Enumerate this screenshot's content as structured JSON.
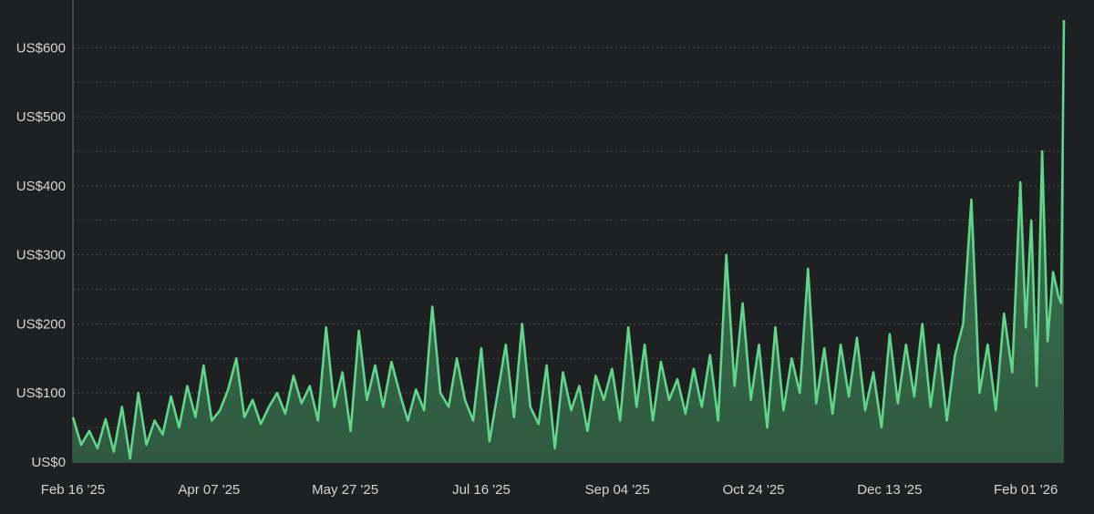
{
  "colors": {
    "background": "#1f2021",
    "line": "#5fd68a",
    "area_top": "#3f7d57",
    "area_bottom": "#2f5a40",
    "grid": "#4a4b4c",
    "axis": "#6a6b6c",
    "text": "#d4d4d4"
  },
  "chart_data": {
    "type": "area",
    "title": "",
    "xlabel": "",
    "ylabel": "",
    "grid": true,
    "y_ticks": [
      {
        "value": 0,
        "label": "US$0"
      },
      {
        "value": 100,
        "label": "US$100"
      },
      {
        "value": 200,
        "label": "US$200"
      },
      {
        "value": 300,
        "label": "US$300"
      },
      {
        "value": 400,
        "label": "US$400"
      },
      {
        "value": 500,
        "label": "US$500"
      },
      {
        "value": 600,
        "label": "US$600"
      }
    ],
    "ylim": [
      0,
      640
    ],
    "x_range": [
      "2025-02-16",
      "2026-02-15"
    ],
    "x_ticks": [
      {
        "date": "2025-02-16",
        "label": "Feb 16 '25"
      },
      {
        "date": "2025-04-07",
        "label": "Apr 07 '25"
      },
      {
        "date": "2025-05-27",
        "label": "May 27 '25"
      },
      {
        "date": "2025-07-16",
        "label": "Jul 16 '25"
      },
      {
        "date": "2025-09-04",
        "label": "Sep 04 '25"
      },
      {
        "date": "2025-10-24",
        "label": "Oct 24 '25"
      },
      {
        "date": "2025-12-13",
        "label": "Dec 13 '25"
      },
      {
        "date": "2026-02-01",
        "label": "Feb 01 '26"
      }
    ],
    "series": [
      {
        "points": [
          [
            "2025-02-16",
            65
          ],
          [
            "2025-02-19",
            25
          ],
          [
            "2025-02-22",
            45
          ],
          [
            "2025-02-25",
            20
          ],
          [
            "2025-02-28",
            62
          ],
          [
            "2025-03-03",
            15
          ],
          [
            "2025-03-06",
            80
          ],
          [
            "2025-03-09",
            5
          ],
          [
            "2025-03-12",
            100
          ],
          [
            "2025-03-15",
            25
          ],
          [
            "2025-03-18",
            60
          ],
          [
            "2025-03-21",
            40
          ],
          [
            "2025-03-24",
            95
          ],
          [
            "2025-03-27",
            50
          ],
          [
            "2025-03-30",
            110
          ],
          [
            "2025-04-02",
            65
          ],
          [
            "2025-04-05",
            140
          ],
          [
            "2025-04-08",
            60
          ],
          [
            "2025-04-11",
            75
          ],
          [
            "2025-04-14",
            105
          ],
          [
            "2025-04-17",
            150
          ],
          [
            "2025-04-20",
            65
          ],
          [
            "2025-04-23",
            90
          ],
          [
            "2025-04-26",
            55
          ],
          [
            "2025-04-29",
            80
          ],
          [
            "2025-05-02",
            100
          ],
          [
            "2025-05-05",
            70
          ],
          [
            "2025-05-08",
            125
          ],
          [
            "2025-05-11",
            85
          ],
          [
            "2025-05-14",
            110
          ],
          [
            "2025-05-17",
            60
          ],
          [
            "2025-05-20",
            195
          ],
          [
            "2025-05-23",
            80
          ],
          [
            "2025-05-26",
            130
          ],
          [
            "2025-05-29",
            45
          ],
          [
            "2025-06-01",
            190
          ],
          [
            "2025-06-04",
            90
          ],
          [
            "2025-06-07",
            140
          ],
          [
            "2025-06-10",
            80
          ],
          [
            "2025-06-13",
            145
          ],
          [
            "2025-06-16",
            100
          ],
          [
            "2025-06-19",
            60
          ],
          [
            "2025-06-22",
            105
          ],
          [
            "2025-06-25",
            75
          ],
          [
            "2025-06-28",
            225
          ],
          [
            "2025-07-01",
            100
          ],
          [
            "2025-07-04",
            80
          ],
          [
            "2025-07-07",
            150
          ],
          [
            "2025-07-10",
            90
          ],
          [
            "2025-07-13",
            60
          ],
          [
            "2025-07-16",
            165
          ],
          [
            "2025-07-19",
            30
          ],
          [
            "2025-07-22",
            100
          ],
          [
            "2025-07-25",
            170
          ],
          [
            "2025-07-28",
            65
          ],
          [
            "2025-07-31",
            200
          ],
          [
            "2025-08-03",
            80
          ],
          [
            "2025-08-06",
            55
          ],
          [
            "2025-08-09",
            140
          ],
          [
            "2025-08-12",
            20
          ],
          [
            "2025-08-15",
            130
          ],
          [
            "2025-08-18",
            75
          ],
          [
            "2025-08-21",
            110
          ],
          [
            "2025-08-24",
            45
          ],
          [
            "2025-08-27",
            125
          ],
          [
            "2025-08-30",
            90
          ],
          [
            "2025-09-02",
            135
          ],
          [
            "2025-09-05",
            60
          ],
          [
            "2025-09-08",
            195
          ],
          [
            "2025-09-11",
            80
          ],
          [
            "2025-09-14",
            170
          ],
          [
            "2025-09-17",
            60
          ],
          [
            "2025-09-20",
            145
          ],
          [
            "2025-09-23",
            90
          ],
          [
            "2025-09-26",
            120
          ],
          [
            "2025-09-29",
            70
          ],
          [
            "2025-10-02",
            135
          ],
          [
            "2025-10-05",
            80
          ],
          [
            "2025-10-08",
            155
          ],
          [
            "2025-10-11",
            60
          ],
          [
            "2025-10-14",
            300
          ],
          [
            "2025-10-17",
            110
          ],
          [
            "2025-10-20",
            230
          ],
          [
            "2025-10-23",
            90
          ],
          [
            "2025-10-26",
            170
          ],
          [
            "2025-10-29",
            50
          ],
          [
            "2025-11-01",
            195
          ],
          [
            "2025-11-04",
            75
          ],
          [
            "2025-11-07",
            150
          ],
          [
            "2025-11-10",
            100
          ],
          [
            "2025-11-13",
            280
          ],
          [
            "2025-11-16",
            85
          ],
          [
            "2025-11-19",
            165
          ],
          [
            "2025-11-22",
            70
          ],
          [
            "2025-11-25",
            170
          ],
          [
            "2025-11-28",
            95
          ],
          [
            "2025-12-01",
            180
          ],
          [
            "2025-12-04",
            75
          ],
          [
            "2025-12-07",
            130
          ],
          [
            "2025-12-10",
            50
          ],
          [
            "2025-12-13",
            185
          ],
          [
            "2025-12-16",
            85
          ],
          [
            "2025-12-19",
            170
          ],
          [
            "2025-12-22",
            95
          ],
          [
            "2025-12-25",
            200
          ],
          [
            "2025-12-28",
            80
          ],
          [
            "2025-12-31",
            170
          ],
          [
            "2026-01-03",
            60
          ],
          [
            "2026-01-06",
            155
          ],
          [
            "2026-01-09",
            200
          ],
          [
            "2026-01-12",
            380
          ],
          [
            "2026-01-15",
            100
          ],
          [
            "2026-01-18",
            170
          ],
          [
            "2026-01-21",
            75
          ],
          [
            "2026-01-24",
            215
          ],
          [
            "2026-01-27",
            130
          ],
          [
            "2026-01-30",
            405
          ],
          [
            "2026-02-01",
            195
          ],
          [
            "2026-02-03",
            350
          ],
          [
            "2026-02-05",
            110
          ],
          [
            "2026-02-07",
            450
          ],
          [
            "2026-02-09",
            175
          ],
          [
            "2026-02-11",
            275
          ],
          [
            "2026-02-13",
            240
          ],
          [
            "2026-02-14",
            230
          ],
          [
            "2026-02-15",
            640
          ]
        ]
      }
    ]
  }
}
